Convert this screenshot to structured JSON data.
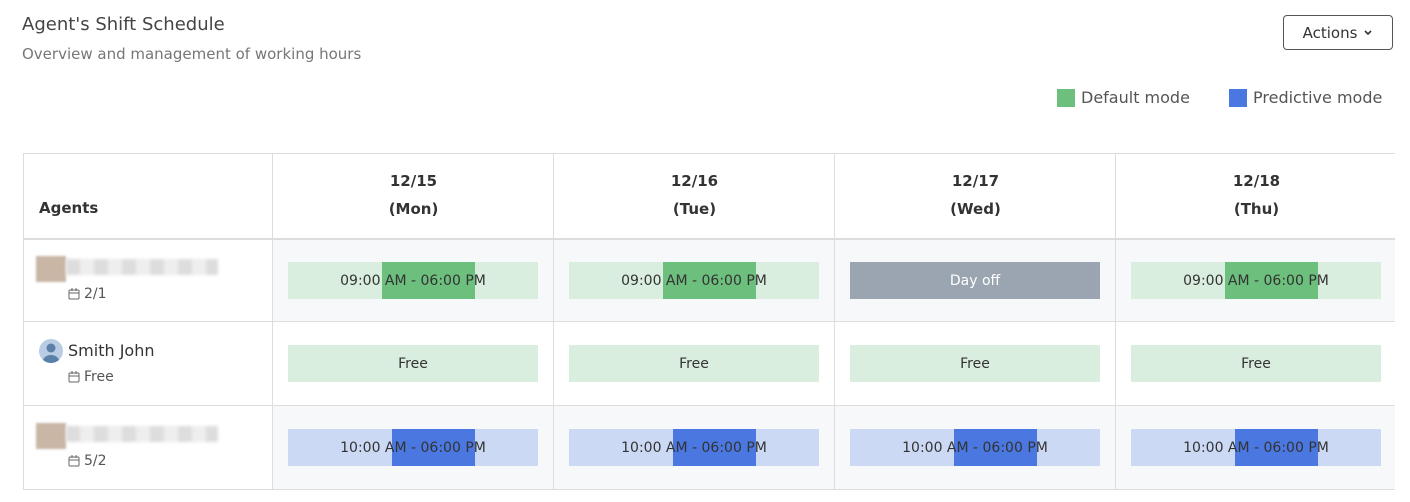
{
  "header": {
    "title": "Agent's Shift Schedule",
    "subtitle": "Overview and management of working hours",
    "actions_button": "Actions"
  },
  "legend": [
    {
      "label": "Default mode",
      "color": "#6cbf7c"
    },
    {
      "label": "Predictive mode",
      "color": "#4a78e0"
    }
  ],
  "table": {
    "agent_header": "Agents",
    "days": [
      {
        "date": "12/15",
        "weekday": "(Mon)"
      },
      {
        "date": "12/16",
        "weekday": "(Tue)"
      },
      {
        "date": "12/17",
        "weekday": "(Wed)"
      },
      {
        "date": "12/18",
        "weekday": "(Thu)"
      }
    ],
    "rows": [
      {
        "count": "2/1",
        "cells": [
          {
            "label": "09:00 AM - 06:00 PM",
            "mode": "default"
          },
          {
            "label": "09:00 AM - 06:00 PM",
            "mode": "default"
          },
          {
            "label": "Day off",
            "mode": "off"
          },
          {
            "label": "09:00 AM - 06:00 PM",
            "mode": "default"
          }
        ]
      },
      {
        "name": "Smith John",
        "count": "Free",
        "cells": [
          {
            "label": "Free",
            "mode": "free"
          },
          {
            "label": "Free",
            "mode": "free"
          },
          {
            "label": "Free",
            "mode": "free"
          },
          {
            "label": "Free",
            "mode": "free"
          }
        ]
      },
      {
        "count": "5/2",
        "cells": [
          {
            "label": "10:00 AM - 06:00 PM",
            "mode": "predictive"
          },
          {
            "label": "10:00 AM - 06:00 PM",
            "mode": "predictive"
          },
          {
            "label": "10:00 AM - 06:00 PM",
            "mode": "predictive"
          },
          {
            "label": "10:00 AM - 06:00 PM",
            "mode": "predictive"
          }
        ]
      }
    ]
  }
}
